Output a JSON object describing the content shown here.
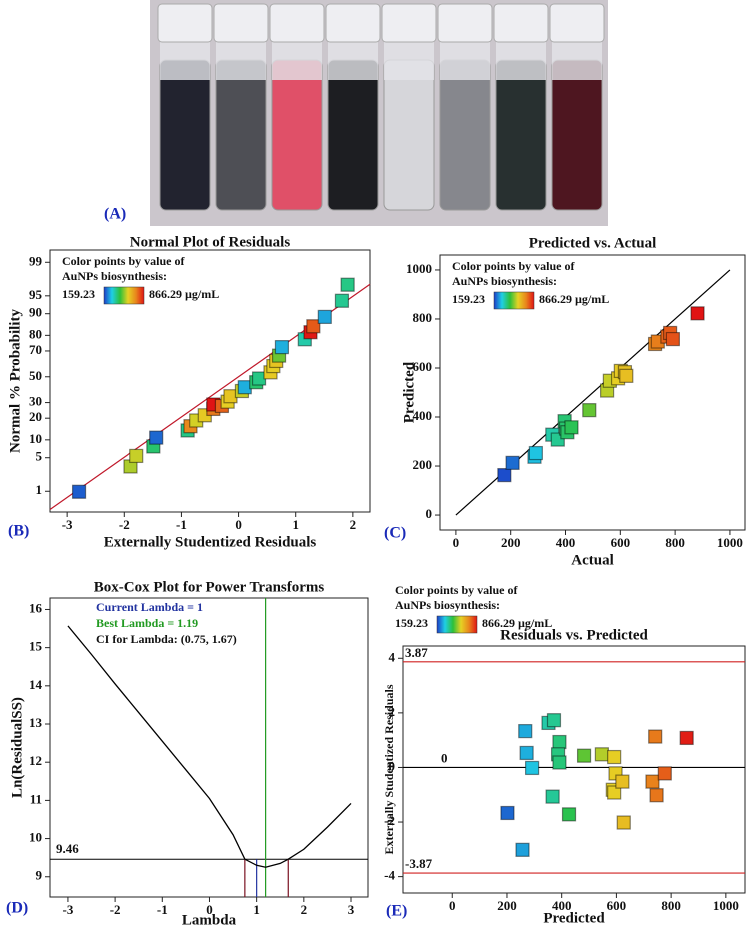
{
  "photo": {
    "label": "(A)"
  },
  "chart_data": [
    {
      "type": "scatter",
      "panel_label": "(B)",
      "title": "Normal Plot of Residuals",
      "xlabel": "Externally Studentized Residuals",
      "ylabel": "Normal % Probability",
      "yscale": "probability",
      "legend_title": [
        "Color points by value of",
        "AuNPs biosynthesis:"
      ],
      "colorbar_ticks": [
        159.23,
        {
          "value": 866.29,
          "label": "866.29 µg/mL"
        }
      ],
      "colormap": [
        "#1c3dc8",
        "#1fcfe4",
        "#2cc03a",
        "#e6d224",
        "#e8861c",
        "#e01414"
      ],
      "x": [
        -2.8,
        -1.9,
        -1.8,
        -1.5,
        -1.45,
        -0.9,
        -0.85,
        -0.75,
        -0.6,
        -0.45,
        -0.45,
        -0.3,
        -0.2,
        -0.15,
        0.05,
        0.1,
        0.3,
        0.35,
        0.55,
        0.6,
        0.65,
        0.7,
        0.75,
        1.15,
        1.25,
        1.3,
        1.5,
        1.8,
        1.9
      ],
      "y": [
        1,
        3.5,
        5.5,
        8,
        11,
        14,
        16,
        19,
        22,
        26,
        29,
        28,
        31,
        35,
        39,
        42,
        46,
        49,
        54,
        59,
        63,
        67,
        73,
        78,
        82,
        85,
        89,
        94,
        97
      ],
      "color_values": [
        190,
        540,
        560,
        400,
        200,
        380,
        720,
        570,
        600,
        740,
        866,
        770,
        590,
        610,
        560,
        270,
        400,
        380,
        600,
        590,
        610,
        490,
        270,
        350,
        860,
        780,
        260,
        370,
        380
      ],
      "fit_line": {
        "x": [
          -3.3,
          2.3
        ],
        "y": [
          0.35,
          97
        ],
        "color": "#c0182a"
      },
      "xlim": [
        -3.3,
        2.3
      ],
      "ylim": [
        0.3,
        99.5
      ],
      "xticks": [
        -3,
        -2,
        -1,
        0,
        1,
        2
      ],
      "yticks": [
        1,
        5,
        10,
        20,
        30,
        50,
        70,
        80,
        90,
        95,
        99
      ]
    },
    {
      "type": "scatter",
      "panel_label": "(C)",
      "title": "Predicted vs. Actual",
      "xlabel": "Actual",
      "ylabel": "Predicted",
      "legend_title": [
        "Color points by value of",
        "AuNPs biosynthesis:"
      ],
      "colorbar_ticks": [
        159.23,
        {
          "value": 866.29,
          "label": "866.29 µg/mL"
        }
      ],
      "colormap": [
        "#1c3dc8",
        "#1fcfe4",
        "#2cc03a",
        "#e6d224",
        "#e8861c",
        "#e01414"
      ],
      "x": [
        175,
        205,
        285,
        290,
        350,
        370,
        395,
        400,
        405,
        420,
        485,
        550,
        560,
        590,
        600,
        615,
        620,
        725,
        735,
        770,
        780,
        790,
        880
      ],
      "y": [
        165,
        215,
        240,
        255,
        330,
        310,
        385,
        355,
        340,
        360,
        430,
        510,
        550,
        560,
        590,
        585,
        570,
        700,
        710,
        730,
        745,
        720,
        825
      ],
      "color_values": [
        175,
        205,
        285,
        290,
        350,
        370,
        395,
        400,
        405,
        420,
        485,
        550,
        560,
        590,
        600,
        615,
        620,
        725,
        735,
        770,
        780,
        790,
        866
      ],
      "fit_line": {
        "x": [
          0,
          1000
        ],
        "y": [
          0,
          1000
        ],
        "color": "#000000"
      },
      "xlim": [
        -58,
        1055
      ],
      "ylim": [
        -61,
        1061
      ],
      "xticks": [
        0,
        200,
        400,
        600,
        800,
        1000
      ],
      "yticks": [
        0,
        200,
        400,
        600,
        800,
        1000
      ]
    },
    {
      "type": "line",
      "panel_label": "(D)",
      "title": "Box-Cox Plot for Power Transforms",
      "xlabel": "Lambda",
      "ylabel": "Ln(ResidualSS)",
      "annotations": [
        {
          "text": "Current Lambda = 1",
          "color": "#2233a0"
        },
        {
          "text": "Best Lambda = 1.19",
          "color": "#229a22"
        },
        {
          "text": "CI for Lambda: (0.75, 1.67)",
          "color": "#111111"
        }
      ],
      "x": [
        -3,
        -2.5,
        -2,
        -1.5,
        -1,
        -0.5,
        0,
        0.5,
        0.75,
        1,
        1.19,
        1.5,
        1.67,
        2,
        2.5,
        3
      ],
      "y": [
        15.57,
        14.82,
        14.05,
        13.3,
        12.55,
        11.8,
        11.05,
        10.1,
        9.46,
        9.3,
        9.25,
        9.35,
        9.46,
        9.72,
        10.3,
        10.92
      ],
      "color": "#000000",
      "threshold": 9.46,
      "current_lambda": 1,
      "best_lambda": 1.19,
      "ci": [
        0.75,
        1.67
      ],
      "line_colors": {
        "current": "#2233a0",
        "best": "#229a22",
        "ci": "#7a1020",
        "threshold": "#000000"
      },
      "xlim": [
        -3.38,
        3.36
      ],
      "ylim": [
        8.47,
        16.3
      ],
      "xticks": [
        -3,
        -2,
        -1,
        0,
        1,
        2,
        3
      ],
      "yticks": [
        9,
        10,
        11,
        12,
        13,
        14,
        15,
        16
      ]
    },
    {
      "type": "scatter",
      "panel_label": "(E)",
      "title": "Residuals vs. Predicted",
      "xlabel": "Predicted",
      "ylabel": "Externally Studentized Residuals",
      "legend_outside": true,
      "legend_title": [
        "Color points by value of",
        "AuNPs biosynthesis:"
      ],
      "colorbar_ticks": [
        159.23,
        {
          "value": 866.29,
          "label": "866.29 µg/mL"
        }
      ],
      "colormap": [
        "#1c3dc8",
        "#1fcfe4",
        "#2cc03a",
        "#e6d224",
        "#e8861c",
        "#e01414"
      ],
      "x": [
        200,
        255,
        265,
        270,
        290,
        350,
        370,
        365,
        390,
        385,
        390,
        425,
        480,
        545,
        590,
        585,
        590,
        595,
        620,
        625,
        730,
        740,
        745,
        775,
        855
      ],
      "y": [
        -1.65,
        -3.0,
        1.35,
        0.55,
        0,
        1.65,
        1.75,
        -1.05,
        0.95,
        0.5,
        0.2,
        -1.7,
        0.45,
        0.5,
        0.4,
        -0.8,
        -0.9,
        -0.2,
        -0.5,
        -2.0,
        -0.5,
        1.15,
        -1.0,
        -0.2,
        1.1
      ],
      "color_values": [
        200,
        255,
        265,
        270,
        290,
        350,
        370,
        365,
        390,
        385,
        390,
        425,
        480,
        545,
        590,
        585,
        590,
        595,
        620,
        625,
        730,
        740,
        745,
        775,
        855
      ],
      "reference_lines": [
        3.87,
        0,
        -3.87
      ],
      "reference_line_colors": [
        "#d02020",
        "#000000",
        "#d02020"
      ],
      "xlim": [
        -180,
        1070
      ],
      "ylim": [
        -4.6,
        4.45
      ],
      "xticks": [
        0,
        200,
        400,
        600,
        800,
        1000
      ],
      "yticks": [
        -4,
        -2,
        0,
        2,
        4
      ]
    }
  ]
}
